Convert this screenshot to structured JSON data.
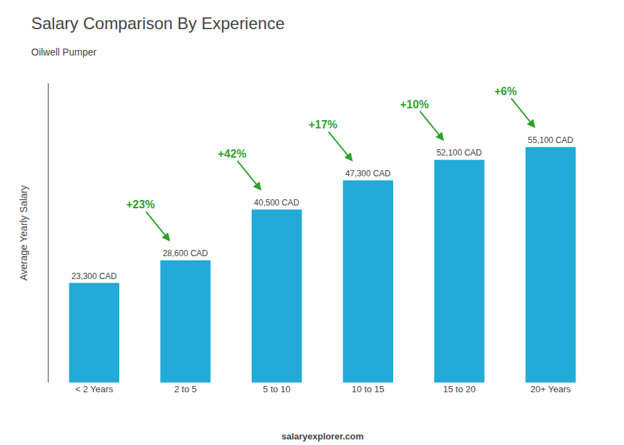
{
  "chart_data": {
    "type": "bar",
    "title": "Salary Comparison By Experience",
    "subtitle": "Oilwell Pumper",
    "categories": [
      "< 2 Years",
      "2 to 5",
      "5 to 10",
      "10 to 15",
      "15 to 20",
      "20+ Years"
    ],
    "values": [
      23300,
      28600,
      40500,
      47300,
      52100,
      55100
    ],
    "value_labels": [
      "23,300 CAD",
      "28,600 CAD",
      "40,500 CAD",
      "47,300 CAD",
      "52,100 CAD",
      "55,100 CAD"
    ],
    "data_labels": true,
    "color": "#22aad8",
    "ylabel": "Average Yearly Salary",
    "ylim": [
      0,
      70000
    ],
    "tick_labels": "x",
    "grid": false,
    "annotations": [
      {
        "text": "+23%",
        "from": "< 2 Years",
        "to": "2 to 5"
      },
      {
        "text": "+42%",
        "from": "2 to 5",
        "to": "5 to 10"
      },
      {
        "text": "+17%",
        "from": "5 to 10",
        "to": "10 to 15"
      },
      {
        "text": "+10%",
        "from": "10 to 15",
        "to": "15 to 20"
      },
      {
        "text": "+6%",
        "from": "15 to 20",
        "to": "20+ Years"
      },
      {
        "text": "salaryexplorer.com"
      }
    ]
  }
}
